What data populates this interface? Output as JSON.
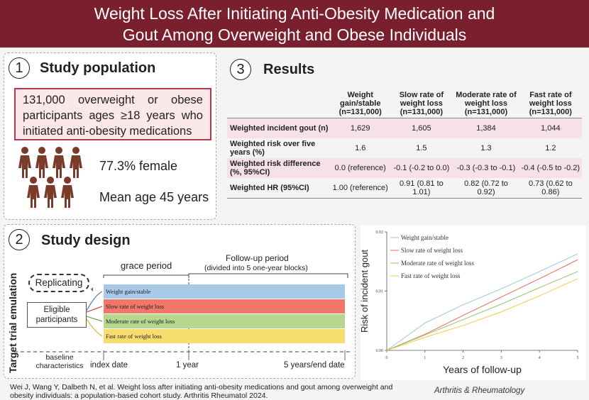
{
  "header": {
    "title_line1": "Weight Loss After Initiating Anti-Obesity Medication and",
    "title_line2": "Gout Among Overweight and Obese Individuals"
  },
  "population": {
    "number": "1",
    "title": "Study population",
    "box_text": "131,000 overweight or obese participants ages ≥18 years who initiated anti-obesity medications",
    "female": "77.3% female",
    "age": "Mean age 45 years"
  },
  "results": {
    "number": "3",
    "title": "Results",
    "columns": [
      "Weight gain/stable (n=131,000)",
      "Slow rate of weight loss (n=131,000)",
      "Moderate rate of weight loss (n=131,000)",
      "Fast rate of weight loss (n=131,000)"
    ],
    "rows": [
      {
        "label": "Weighted incident gout (n)",
        "cells": [
          "1,629",
          "1,605",
          "1,384",
          "1,044"
        ]
      },
      {
        "label": "Weighted risk over five years (%)",
        "cells": [
          "1.6",
          "1.5",
          "1.3",
          "1.2"
        ]
      },
      {
        "label": "Weighted risk difference (%, 95%CI)",
        "cells": [
          "0.0 (reference)",
          "-0.1 (-0.2 to 0.0)",
          "-0.3 (-0.3 to -0.1)",
          "-0.4 (-0.5 to -0.2)"
        ]
      },
      {
        "label": "Weighted HR (95%CI)",
        "cells": [
          "1.00 (reference)",
          "0.91 (0.81 to 1.01)",
          "0.82 (0.72 to 0.92)",
          "0.73 (0.62 to 0.86)"
        ]
      }
    ]
  },
  "design": {
    "number": "2",
    "title": "Study design",
    "side_label": "Target trial emulation",
    "replicating": "Replicating",
    "eligible": "Eligible participants",
    "grace_period": "grace period",
    "follow_up": "Follow-up period",
    "follow_up_sub": "(divided into 5 one-year blocks)",
    "bars": [
      {
        "label": "Weight gain/stable",
        "color": "#a9c9e8"
      },
      {
        "label": "Slow rate of weight loss",
        "color": "#f0776a"
      },
      {
        "label": "Moderate rate of weight loss",
        "color": "#b5d88e"
      },
      {
        "label": "Fast rate of weight loss",
        "color": "#f7dd6e"
      }
    ],
    "baseline": "baseline characteristics",
    "index_date": "index date",
    "one_year": "1 year",
    "end_date": "5 years/end date"
  },
  "chart_data": {
    "type": "line",
    "title": "",
    "xlabel": "Years of follow-up",
    "ylabel": "Risk of incident gout",
    "xlim": [
      0,
      5
    ],
    "ylim": [
      0,
      0.02
    ],
    "x_ticks": [
      "0",
      "1",
      "2",
      "3",
      "4",
      "5"
    ],
    "y_ticks": [
      "0.00",
      "0.01",
      "0.02"
    ],
    "legend_position": "top-left",
    "x": [
      0,
      1,
      2,
      3,
      4,
      5
    ],
    "series": [
      {
        "name": "Weight gain/stable",
        "color": "#9cc3e8",
        "values": [
          0,
          0.0046,
          0.0077,
          0.0104,
          0.0133,
          0.0163
        ]
      },
      {
        "name": "Slow rate of weight loss",
        "color": "#e8685c",
        "values": [
          0,
          0.0027,
          0.0059,
          0.009,
          0.0121,
          0.0153
        ]
      },
      {
        "name": "Moderate rate of weight loss",
        "color": "#8fc66a",
        "values": [
          0,
          0.0026,
          0.0052,
          0.0078,
          0.0106,
          0.0133
        ]
      },
      {
        "name": "Fast rate of weight loss",
        "color": "#f2cc43",
        "values": [
          0,
          0.0022,
          0.0042,
          0.0065,
          0.0092,
          0.0121
        ]
      }
    ]
  },
  "footer": {
    "citation": "Wei J, Wang Y, Dalbeth N, et al. Weight loss after initiating anti-obesity medications and gout among overweight and obesity individuals: a population-based cohort study. Arthritis Rheumatol 2024.",
    "journal": "Arthritis & Rheumatology"
  }
}
